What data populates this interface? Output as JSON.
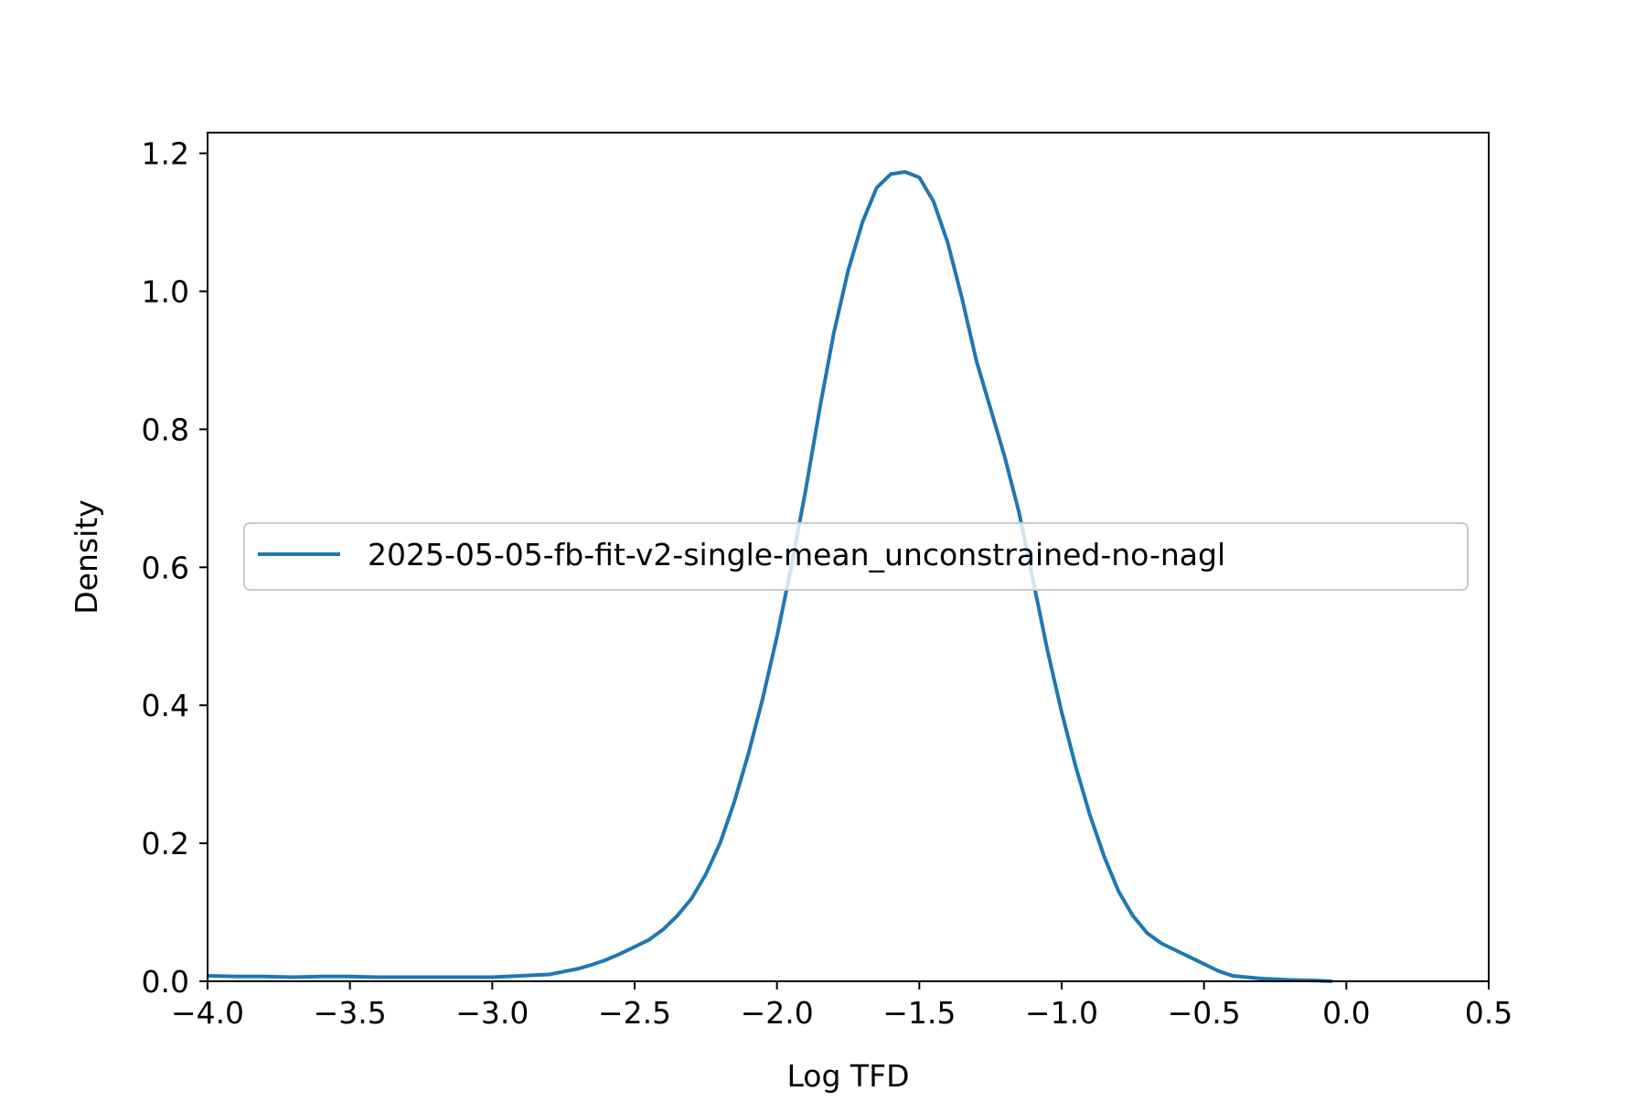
{
  "chart_data": {
    "type": "line",
    "title": "",
    "xlabel": "Log TFD",
    "ylabel": "Density",
    "xlim": [
      -4.0,
      0.5
    ],
    "ylim": [
      0.0,
      1.23
    ],
    "xticks": [
      -4.0,
      -3.5,
      -3.0,
      -2.5,
      -2.0,
      -1.5,
      -1.0,
      -0.5,
      0.0,
      0.5
    ],
    "xtick_labels": [
      "−4.0",
      "−3.5",
      "−3.0",
      "−2.5",
      "−2.0",
      "−1.5",
      "−1.0",
      "−0.5",
      "0.0",
      "0.5"
    ],
    "yticks": [
      0.0,
      0.2,
      0.4,
      0.6,
      0.8,
      1.0,
      1.2
    ],
    "ytick_labels": [
      "0.0",
      "0.2",
      "0.4",
      "0.6",
      "0.8",
      "1.0",
      "1.2"
    ],
    "grid": false,
    "legend_position": "center-left",
    "series": [
      {
        "name": "2025-05-05-fb-fit-v2-single-mean_unconstrained-no-nagl",
        "color": "#1f77b4",
        "x": [
          -4.0,
          -3.9,
          -3.8,
          -3.7,
          -3.6,
          -3.5,
          -3.4,
          -3.3,
          -3.2,
          -3.1,
          -3.0,
          -2.9,
          -2.8,
          -2.75,
          -2.7,
          -2.65,
          -2.6,
          -2.55,
          -2.5,
          -2.45,
          -2.4,
          -2.35,
          -2.3,
          -2.25,
          -2.2,
          -2.15,
          -2.1,
          -2.05,
          -2.0,
          -1.95,
          -1.9,
          -1.85,
          -1.8,
          -1.75,
          -1.7,
          -1.65,
          -1.6,
          -1.55,
          -1.5,
          -1.45,
          -1.4,
          -1.35,
          -1.3,
          -1.25,
          -1.2,
          -1.15,
          -1.1,
          -1.05,
          -1.0,
          -0.95,
          -0.9,
          -0.85,
          -0.8,
          -0.75,
          -0.7,
          -0.65,
          -0.6,
          -0.55,
          -0.5,
          -0.45,
          -0.4,
          -0.3,
          -0.2,
          -0.1,
          -0.05
        ],
        "y": [
          0.008,
          0.007,
          0.007,
          0.006,
          0.007,
          0.007,
          0.006,
          0.006,
          0.006,
          0.006,
          0.006,
          0.008,
          0.01,
          0.014,
          0.018,
          0.024,
          0.031,
          0.04,
          0.05,
          0.06,
          0.075,
          0.095,
          0.12,
          0.155,
          0.2,
          0.26,
          0.33,
          0.41,
          0.5,
          0.6,
          0.71,
          0.83,
          0.94,
          1.03,
          1.1,
          1.15,
          1.17,
          1.173,
          1.165,
          1.13,
          1.07,
          0.99,
          0.9,
          0.83,
          0.76,
          0.68,
          0.58,
          0.48,
          0.39,
          0.31,
          0.24,
          0.18,
          0.13,
          0.095,
          0.07,
          0.055,
          0.045,
          0.035,
          0.025,
          0.015,
          0.008,
          0.004,
          0.002,
          0.001,
          0.0
        ]
      }
    ]
  }
}
